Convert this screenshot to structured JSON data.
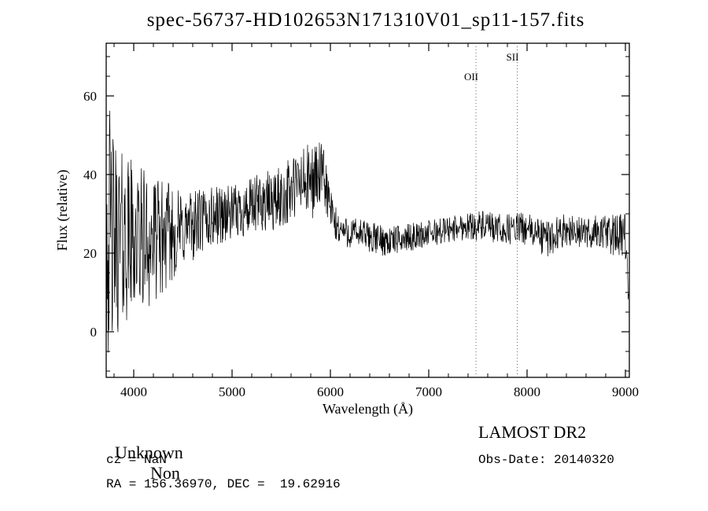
{
  "title": "spec-56737-HD102653N171310V01_sp11-157.fits",
  "chart_data": {
    "type": "line",
    "title": "spec-56737-HD102653N171310V01_sp11-157.fits",
    "xlabel": "Wavelength (Å)",
    "ylabel": "Flux (relative)",
    "xlim": [
      3720,
      9040
    ],
    "ylim": [
      -11.6,
      73.4
    ],
    "xticks": [
      4000,
      5000,
      6000,
      7000,
      8000,
      9000
    ],
    "yticks": [
      0,
      20,
      40,
      60
    ],
    "x_minor_step": 200,
    "y_minor_step": 5,
    "grid": false,
    "line_color": "#000000",
    "marker_line_color": "#666666",
    "sample_step": 4,
    "noise_seed": 42,
    "spectrum_envelope": [
      [
        3720,
        28,
        34
      ],
      [
        3760,
        24,
        32
      ],
      [
        3800,
        24,
        26
      ],
      [
        3850,
        23,
        24
      ],
      [
        3900,
        23,
        22
      ],
      [
        3950,
        24,
        21
      ],
      [
        4000,
        24,
        20
      ],
      [
        4050,
        23,
        19
      ],
      [
        4100,
        24,
        18
      ],
      [
        4150,
        23,
        17
      ],
      [
        4200,
        23,
        16
      ],
      [
        4300,
        24,
        15
      ],
      [
        4400,
        25,
        12
      ],
      [
        4500,
        26,
        10
      ],
      [
        4600,
        27,
        9
      ],
      [
        4700,
        28,
        9
      ],
      [
        4800,
        29,
        8
      ],
      [
        4900,
        30,
        8
      ],
      [
        5000,
        30,
        7
      ],
      [
        5100,
        31,
        7
      ],
      [
        5200,
        31,
        8
      ],
      [
        5300,
        33,
        8
      ],
      [
        5400,
        33,
        8
      ],
      [
        5500,
        34,
        8
      ],
      [
        5600,
        36,
        9
      ],
      [
        5700,
        38,
        9
      ],
      [
        5800,
        38,
        10
      ],
      [
        5880,
        40,
        9
      ],
      [
        5950,
        38,
        8
      ],
      [
        6000,
        31,
        6
      ],
      [
        6050,
        27,
        5
      ],
      [
        6100,
        26,
        4
      ],
      [
        6200,
        25,
        4
      ],
      [
        6300,
        25,
        4
      ],
      [
        6400,
        24,
        4
      ],
      [
        6500,
        23.5,
        4
      ],
      [
        6600,
        23,
        4
      ],
      [
        6700,
        23.5,
        3.5
      ],
      [
        6800,
        24,
        3.5
      ],
      [
        6900,
        24.5,
        3.5
      ],
      [
        7000,
        25,
        3.5
      ],
      [
        7100,
        25.5,
        3.5
      ],
      [
        7200,
        26,
        3.5
      ],
      [
        7300,
        26.5,
        3.5
      ],
      [
        7400,
        27,
        3.5
      ],
      [
        7500,
        27,
        4
      ],
      [
        7600,
        26.5,
        4
      ],
      [
        7700,
        26,
        4
      ],
      [
        7800,
        26,
        4
      ],
      [
        7900,
        26.5,
        4
      ],
      [
        8000,
        26,
        4
      ],
      [
        8100,
        25,
        4.5
      ],
      [
        8200,
        23.5,
        5
      ],
      [
        8300,
        25,
        4.5
      ],
      [
        8400,
        26,
        4
      ],
      [
        8500,
        25.5,
        4
      ],
      [
        8600,
        25,
        4
      ],
      [
        8700,
        25.5,
        4.5
      ],
      [
        8800,
        25,
        5
      ],
      [
        8900,
        24.5,
        5.5
      ],
      [
        9000,
        24,
        6
      ],
      [
        9020,
        18,
        5
      ],
      [
        9035,
        5,
        3
      ]
    ],
    "line_markers": [
      {
        "label": "OII",
        "x": 7480,
        "label_flux": 64
      },
      {
        "label": "SII",
        "x": 7900,
        "label_flux": 69
      }
    ]
  },
  "annotations": {
    "class_label": "Unknown",
    "subclass_label": "Non",
    "survey": "LAMOST DR2",
    "cz": "cz = NaN",
    "obs_date": "Obs-Date: 20140320",
    "ra_dec": "RA = 156.36970, DEC =  19.62916"
  }
}
